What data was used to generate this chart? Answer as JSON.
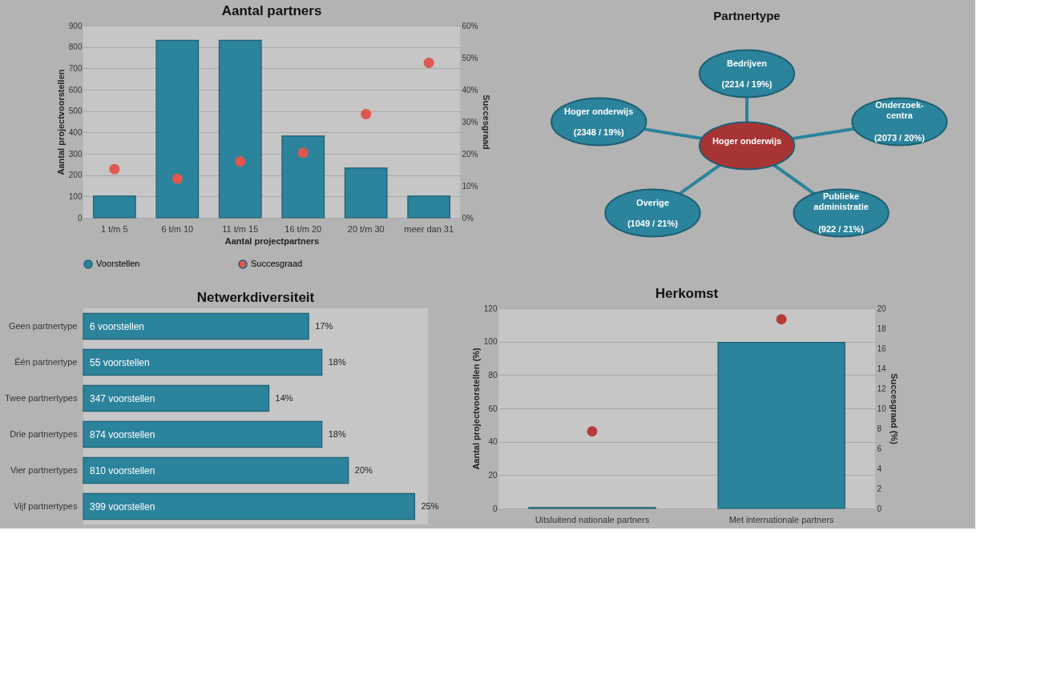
{
  "chart_data": [
    {
      "type": "bar",
      "title": "Aantal partners",
      "xlabel": "Aantal projectpartners",
      "ylabel": "Aantal projectvoorstellen",
      "y2label": "Succesgraad",
      "categories": [
        "1 t/m 5",
        "6 t/m 10",
        "11 t/m 15",
        "16 t/m 20",
        "20 t/m 30",
        "meer dan 31"
      ],
      "series": [
        {
          "name": "Voorstellen",
          "type": "bar",
          "color": "#2b839c",
          "values": [
            102,
            831,
            831,
            383,
            233,
            102
          ]
        },
        {
          "name": "Succesgraad",
          "type": "scatter",
          "axis": "y2",
          "color": "#e0574f",
          "values": [
            15.2,
            12.2,
            17.6,
            20.3,
            32.4,
            48.4
          ]
        }
      ],
      "ylim": [
        0,
        900
      ],
      "yticks": [
        0,
        100,
        200,
        300,
        400,
        500,
        600,
        700,
        800,
        900
      ],
      "y2lim": [
        0,
        60
      ],
      "y2ticks": [
        {
          "value": 0,
          "label": "0%"
        },
        {
          "value": 10,
          "label": "10%"
        },
        {
          "value": 20,
          "label": "20%"
        },
        {
          "value": 30,
          "label": "30%"
        },
        {
          "value": 40,
          "label": "40%"
        },
        {
          "value": 50,
          "label": "50%"
        },
        {
          "value": 60,
          "label": "60%"
        }
      ],
      "grid": "y",
      "legend": "bottom",
      "marker": "circle"
    },
    {
      "type": "other",
      "title": "Partnertype",
      "categories": [
        "Bedrijven",
        "Hoger onderwijs",
        "Hoger onderwijs",
        "Onderzoek-centra",
        "Overige",
        "Publieke administratie"
      ],
      "value_labels": [
        "(2214 / 19%)",
        "(2348 / 19%)",
        null,
        "(2073 / 20%)",
        "(1049 / 21%)",
        "(922 / 21%)"
      ],
      "colors": [
        "#2b839c",
        "#2b839c",
        "#a93434",
        "#2b839c",
        "#2b839c",
        "#2b839c"
      ]
    },
    {
      "type": "bar",
      "orientation": "horizontal",
      "title": "Netwerkdiversiteit",
      "categories": [
        "Geen partnertype",
        "Één partnertype",
        "Twee partnertypes",
        "Drie partnertypes",
        "Vier partnertypes",
        "Vijf partnertypes"
      ],
      "series": [
        {
          "type": "bar",
          "color": "#2b839c",
          "values": [
            17,
            18,
            14,
            18,
            20,
            25
          ],
          "value_labels": [
            "17%",
            "18%",
            "14%",
            "18%",
            "20%",
            "25%"
          ]
        }
      ],
      "annotations": [
        {
          "text": "6 voorstellen",
          "y": "Geen partnertype"
        },
        {
          "text": "55 voorstellen",
          "y": "Één partnertype"
        },
        {
          "text": "347 voorstellen",
          "y": "Twee partnertypes"
        },
        {
          "text": "874 voorstellen",
          "y": "Drie partnertypes"
        },
        {
          "text": "810 voorstellen",
          "y": "Vier partnertypes"
        },
        {
          "text": "399 voorstellen",
          "y": "Vijf partnertypes"
        }
      ],
      "tick_labels": "y"
    },
    {
      "type": "bar",
      "title": "Herkomst",
      "ylabel": "Aantal projectvoorstellen (%)",
      "y2label": "Succesgraad (%)",
      "categories": [
        "Uitsluitend nationale partners",
        "Met internationale partners"
      ],
      "series": [
        {
          "type": "bar",
          "color": "#2b839c",
          "values": [
            0.5,
            99.5
          ]
        },
        {
          "type": "scatter",
          "axis": "y2",
          "color": "#b83a3a",
          "values": [
            7.7,
            18.9
          ]
        }
      ],
      "ylim": [
        0,
        120
      ],
      "yticks": [
        0,
        20,
        40,
        60,
        80,
        100,
        120
      ],
      "y2lim": [
        0,
        20
      ],
      "y2ticks": [
        0,
        2,
        4,
        6,
        8,
        10,
        12,
        14,
        16,
        18,
        20
      ],
      "grid": "y",
      "marker": "circle"
    }
  ]
}
